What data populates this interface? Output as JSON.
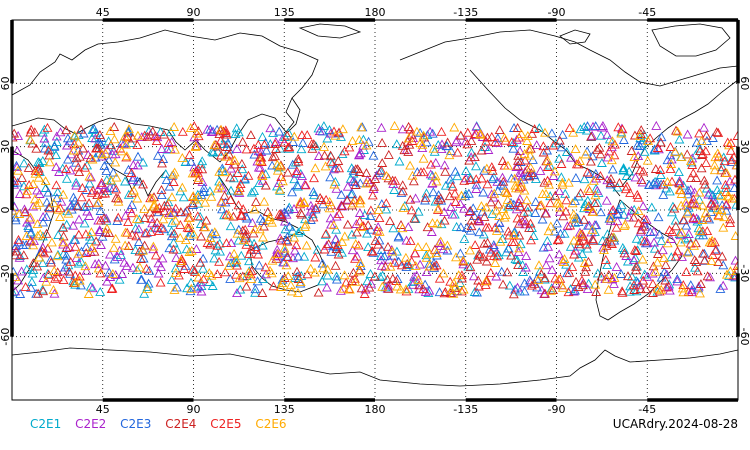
{
  "map": {
    "projection": "cylindrical",
    "lon_range": [
      0,
      360
    ],
    "lat_range": [
      -90,
      90
    ],
    "lon_ticks": [
      "45",
      "90",
      "135",
      "180",
      "-135",
      "-90",
      "-45"
    ],
    "lat_ticks_left": [
      "60",
      "30",
      "0",
      "-30",
      "-60"
    ],
    "lat_ticks_right": [
      "60",
      "30",
      "0",
      "-30",
      "-60"
    ],
    "grid": "dotted",
    "coastline": true
  },
  "legend": {
    "items": [
      {
        "label": "C2E1",
        "color": "#00aacc"
      },
      {
        "label": "C2E2",
        "color": "#aa22cc"
      },
      {
        "label": "C2E3",
        "color": "#2266dd"
      },
      {
        "label": "C2E4",
        "color": "#cc2222"
      },
      {
        "label": "C2E5",
        "color": "#ee2222"
      },
      {
        "label": "C2E6",
        "color": "#ffaa00"
      }
    ]
  },
  "footer": {
    "label": "UCARdry.2024-08-28"
  },
  "observations": {
    "marker": "triangle-outline",
    "lat_band": [
      -40,
      40
    ],
    "density": "dense"
  }
}
